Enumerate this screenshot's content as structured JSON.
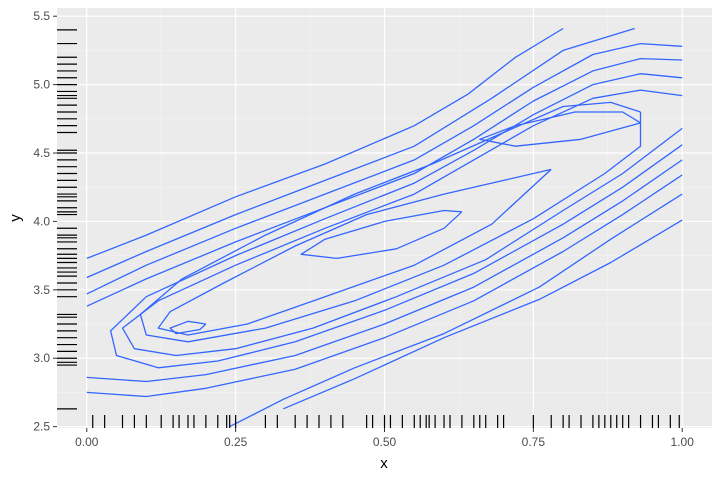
{
  "chart_data": {
    "type": "density2d",
    "x_label": "x",
    "y_label": "y",
    "xlim": [
      -0.05,
      1.05
    ],
    "ylim": [
      2.49,
      5.56
    ],
    "xticks": [
      {
        "value": 0,
        "label": "0.00"
      },
      {
        "value": 0.25,
        "label": "0.25"
      },
      {
        "value": 0.5,
        "label": "0.50"
      },
      {
        "value": 0.75,
        "label": "0.75"
      },
      {
        "value": 1,
        "label": "1.00"
      }
    ],
    "yticks": [
      2.5,
      {
        "value": 3,
        "label": "3.0"
      },
      3.5,
      {
        "value": 4,
        "label": "4.0"
      },
      4.5,
      {
        "value": 5,
        "label": "5.0"
      },
      5.5
    ],
    "xminor": [
      0.125,
      0.375,
      0.625,
      0.875
    ],
    "yminor": [
      2.75,
      3.25,
      3.75,
      4.25,
      4.75,
      5.25
    ],
    "grid": true,
    "color": "#3366ff",
    "rug_color": "#000000",
    "contours": [
      {
        "x": [
          0,
          0.1,
          0.25,
          0.4,
          0.55,
          0.64,
          0.72,
          0.8
        ],
        "y": [
          3.73,
          3.9,
          4.18,
          4.42,
          4.7,
          4.93,
          5.2,
          5.41
        ]
      },
      {
        "x": [
          0.33,
          0.45,
          0.6,
          0.76,
          0.88,
          1
        ],
        "y": [
          2.63,
          2.85,
          3.15,
          3.43,
          3.7,
          4.01
        ]
      },
      {
        "x": [
          0,
          0.1,
          0.25,
          0.4,
          0.55,
          0.68,
          0.8,
          0.92
        ],
        "y": [
          3.59,
          3.78,
          4.05,
          4.3,
          4.55,
          4.9,
          5.25,
          5.41
        ]
      },
      {
        "x": [
          0.24,
          0.33,
          0.45,
          0.6,
          0.76,
          0.88,
          1
        ],
        "y": [
          2.5,
          2.7,
          2.93,
          3.18,
          3.52,
          3.87,
          4.2
        ]
      },
      {
        "x": [
          0,
          0.1,
          0.25,
          0.4,
          0.55,
          0.65,
          0.75,
          0.85,
          0.93,
          1
        ],
        "y": [
          3.47,
          3.68,
          3.95,
          4.2,
          4.45,
          4.7,
          4.98,
          5.22,
          5.3,
          5.28
        ]
      },
      {
        "x": [
          0,
          0.1,
          0.2,
          0.35,
          0.5,
          0.65,
          0.8,
          0.9,
          1
        ],
        "y": [
          2.75,
          2.72,
          2.78,
          2.92,
          3.15,
          3.42,
          3.78,
          4.05,
          4.34
        ]
      },
      {
        "x": [
          0,
          0.1,
          0.25,
          0.4,
          0.55,
          0.65,
          0.75,
          0.85,
          0.93,
          1
        ],
        "y": [
          3.38,
          3.58,
          3.85,
          4.1,
          4.35,
          4.6,
          4.88,
          5.1,
          5.19,
          5.18
        ]
      },
      {
        "x": [
          0,
          0.1,
          0.2,
          0.35,
          0.5,
          0.65,
          0.8,
          0.9,
          1
        ],
        "y": [
          2.86,
          2.83,
          2.88,
          3.02,
          3.25,
          3.52,
          3.88,
          4.15,
          4.45
        ]
      },
      {
        "x": [
          1,
          0.93,
          0.85,
          0.75,
          0.65,
          0.55,
          0.4,
          0.25,
          0.1,
          0.04,
          0.05,
          0.12,
          0.22,
          0.35,
          0.5,
          0.65,
          0.8,
          0.9,
          1
        ],
        "y": [
          5.05,
          5.08,
          5.0,
          4.78,
          4.52,
          4.28,
          4.02,
          3.75,
          3.45,
          3.2,
          3.02,
          2.93,
          2.98,
          3.12,
          3.35,
          3.62,
          3.98,
          4.25,
          4.56
        ]
      },
      {
        "x": [
          1,
          0.93,
          0.85,
          0.75,
          0.65,
          0.55,
          0.4,
          0.25,
          0.12,
          0.06,
          0.08,
          0.15,
          0.25,
          0.38,
          0.52,
          0.67,
          0.8,
          0.9,
          1
        ],
        "y": [
          4.92,
          4.96,
          4.9,
          4.7,
          4.45,
          4.2,
          3.95,
          3.68,
          3.42,
          3.22,
          3.07,
          3.02,
          3.07,
          3.22,
          3.45,
          3.72,
          4.08,
          4.35,
          4.68
        ]
      },
      {
        "x": [
          0.93,
          0.88,
          0.8,
          0.7,
          0.58,
          0.45,
          0.3,
          0.16,
          0.09,
          0.1,
          0.17,
          0.3,
          0.45,
          0.6,
          0.75,
          0.87,
          0.93,
          0.93
        ],
        "y": [
          4.8,
          4.87,
          4.84,
          4.65,
          4.42,
          4.2,
          3.9,
          3.58,
          3.32,
          3.17,
          3.12,
          3.22,
          3.42,
          3.68,
          4.02,
          4.35,
          4.55,
          4.8
        ]
      },
      {
        "x": [
          0.78,
          0.7,
          0.6,
          0.47,
          0.35,
          0.23,
          0.14,
          0.12,
          0.17,
          0.27,
          0.4,
          0.55,
          0.68,
          0.78
        ],
        "y": [
          4.38,
          4.3,
          4.2,
          4.05,
          3.82,
          3.55,
          3.34,
          3.22,
          3.17,
          3.25,
          3.45,
          3.68,
          3.98,
          4.38
        ]
      },
      {
        "x": [
          0.93,
          0.9,
          0.82,
          0.72,
          0.66,
          0.72,
          0.83,
          0.93
        ],
        "y": [
          4.72,
          4.8,
          4.8,
          4.7,
          4.6,
          4.55,
          4.6,
          4.72
        ]
      },
      {
        "x": [
          0.63,
          0.6,
          0.5,
          0.4,
          0.36,
          0.42,
          0.52,
          0.6,
          0.63
        ],
        "y": [
          4.07,
          4.08,
          4.0,
          3.87,
          3.76,
          3.73,
          3.8,
          3.95,
          4.07
        ]
      },
      {
        "x": [
          0.2,
          0.17,
          0.14,
          0.15,
          0.19,
          0.2
        ],
        "y": [
          3.25,
          3.27,
          3.22,
          3.18,
          3.21,
          3.25
        ]
      }
    ],
    "rug_x": [
      0.01,
      0.03,
      0.06,
      0.08,
      0.1,
      0.125,
      0.145,
      0.155,
      0.17,
      0.18,
      0.2,
      0.22,
      0.235,
      0.24,
      0.25,
      0.3,
      0.32,
      0.35,
      0.37,
      0.39,
      0.41,
      0.43,
      0.47,
      0.48,
      0.5,
      0.51,
      0.53,
      0.55,
      0.56,
      0.57,
      0.575,
      0.585,
      0.6,
      0.61,
      0.63,
      0.65,
      0.66,
      0.67,
      0.69,
      0.7,
      0.75,
      0.78,
      0.8,
      0.81,
      0.83,
      0.85,
      0.86,
      0.87,
      0.88,
      0.89,
      0.9,
      0.91,
      0.93,
      0.95,
      0.96,
      0.98,
      0.995
    ],
    "rug_y": [
      2.63,
      2.95,
      2.97,
      3.0,
      3.05,
      3.1,
      3.15,
      3.2,
      3.25,
      3.3,
      3.32,
      3.45,
      3.5,
      3.55,
      3.6,
      3.63,
      3.66,
      3.7,
      3.73,
      3.76,
      3.8,
      3.85,
      3.88,
      3.9,
      3.95,
      4.05,
      4.07,
      4.1,
      4.15,
      4.18,
      4.2,
      4.25,
      4.3,
      4.35,
      4.4,
      4.45,
      4.5,
      4.52,
      4.65,
      4.7,
      4.75,
      4.8,
      4.85,
      4.9,
      4.92,
      4.95,
      5.0,
      5.05,
      5.1,
      5.15,
      5.2,
      5.3,
      5.4
    ]
  }
}
